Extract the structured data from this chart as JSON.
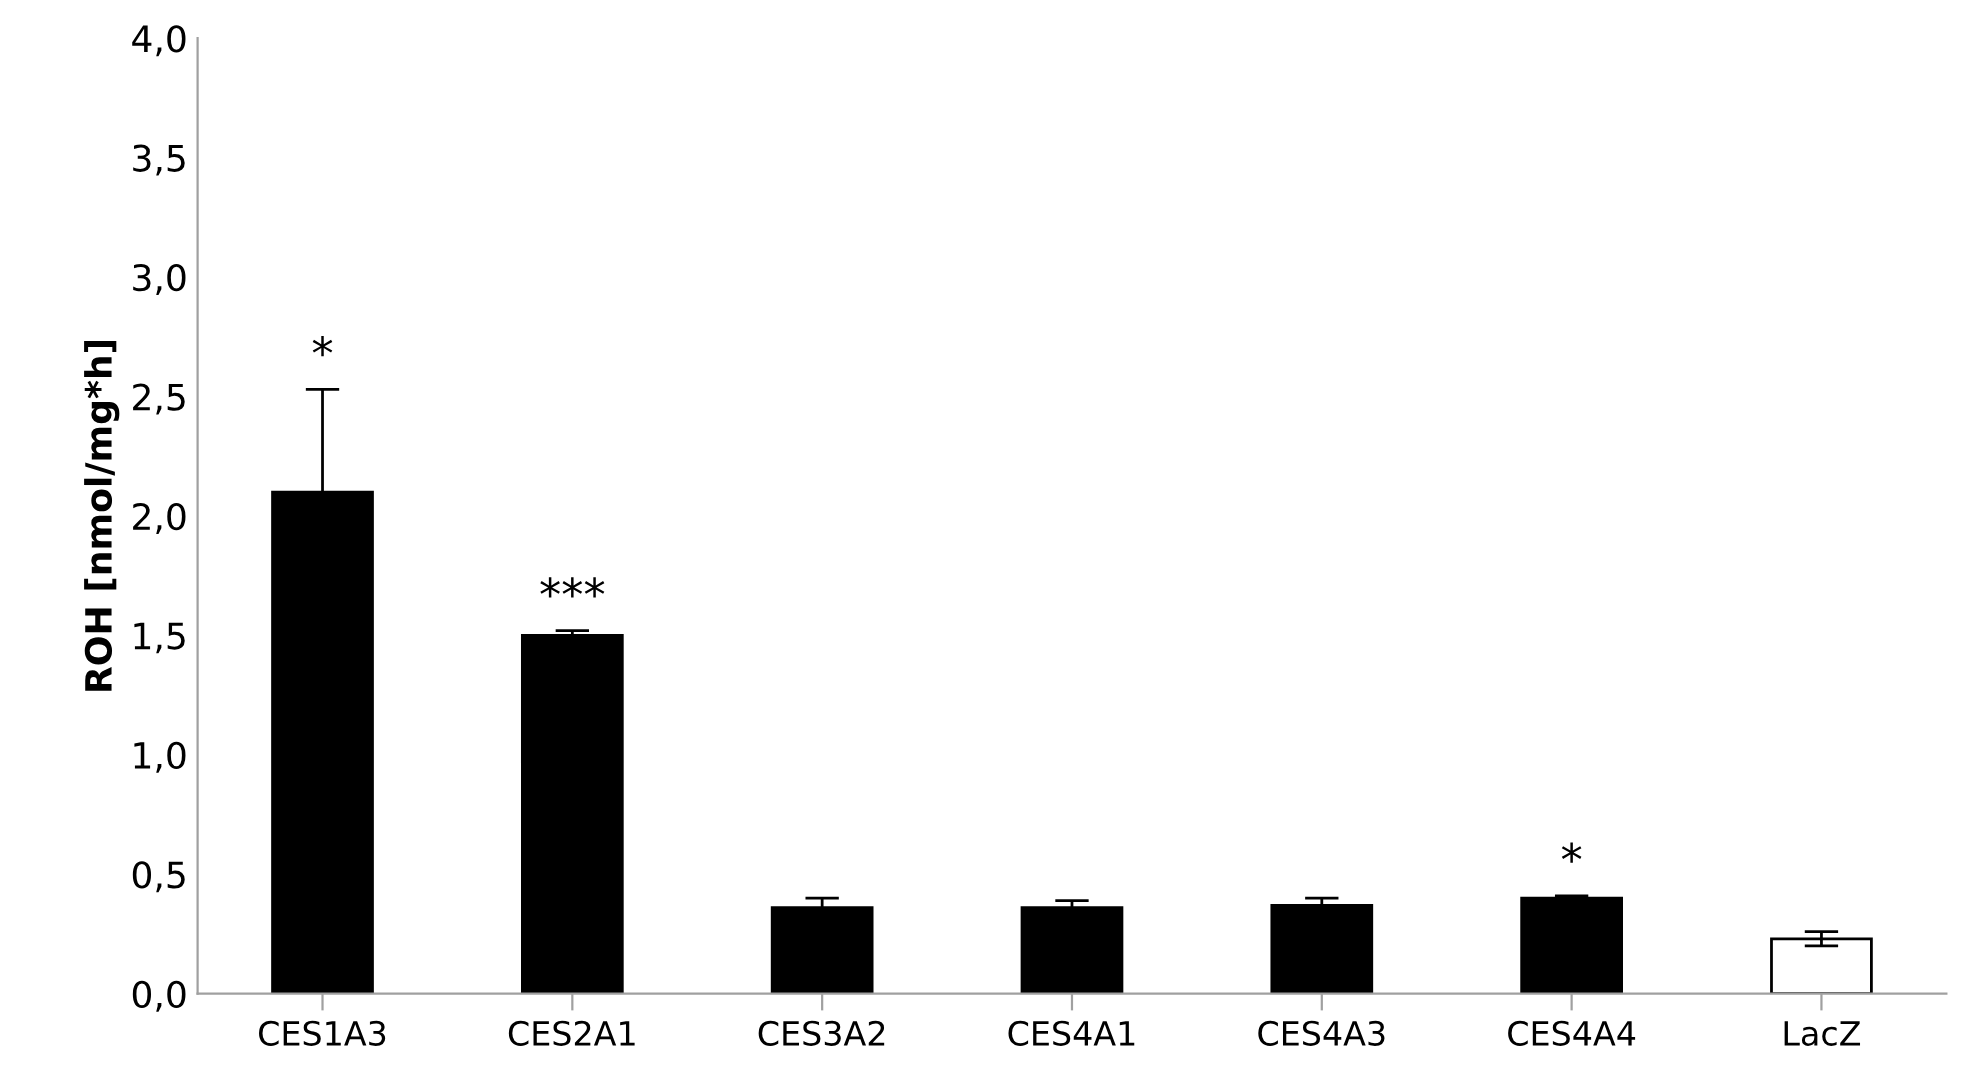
{
  "chart_data": {
    "type": "bar",
    "ylabel": "ROH [nmol/mg*h]",
    "categories": [
      "CES1A3",
      "CES2A1",
      "CES3A2",
      "CES4A1",
      "CES4A3",
      "CES4A4",
      "LacZ"
    ],
    "values": [
      2.1,
      1.5,
      0.36,
      0.36,
      0.37,
      0.4,
      0.23
    ],
    "errors": [
      0.43,
      0.02,
      0.04,
      0.03,
      0.03,
      0.01,
      0.03
    ],
    "colors": [
      "#000000",
      "#000000",
      "#000000",
      "#000000",
      "#000000",
      "#000000",
      "#ffffff"
    ],
    "ylim": [
      0,
      4
    ],
    "yticks": [
      {
        "value": 0,
        "label": "0,0"
      },
      {
        "value": 0.5,
        "label": "0,5"
      },
      {
        "value": 1,
        "label": "1,0"
      },
      {
        "value": 1.5,
        "label": "1,5"
      },
      {
        "value": 2,
        "label": "2,0"
      },
      {
        "value": 2.5,
        "label": "2,5"
      },
      {
        "value": 3,
        "label": "3,0"
      },
      {
        "value": 3.5,
        "label": "3,5"
      },
      {
        "value": 4,
        "label": "4,0"
      }
    ],
    "annotations": [
      {
        "text": "*",
        "x": "CES1A3",
        "y": 2.53
      },
      {
        "text": "***",
        "x": "CES2A1",
        "y": 1.52
      },
      {
        "text": "*",
        "x": "CES4A4",
        "y": 0.41
      }
    ],
    "grid": false,
    "legend": false
  }
}
